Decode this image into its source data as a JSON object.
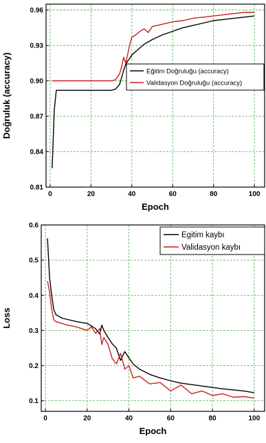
{
  "chart_data": [
    {
      "type": "line",
      "xlabel": "Epoch",
      "ylabel": "Doğruluk (accuracy)",
      "xlim": [
        -2,
        105
      ],
      "ylim": [
        0.81,
        0.965
      ],
      "xticks": [
        "0",
        "20",
        "40",
        "60",
        "80",
        "100"
      ],
      "yticks": [
        "0.81",
        "0.84",
        "0.87",
        "0.90",
        "0.93",
        "0.96"
      ],
      "grid": true,
      "legend_position": "center-right",
      "series": [
        {
          "name": "Eğitim Doğruluğu (accuracy)",
          "color": "#000000",
          "x": [
            1,
            2,
            3,
            5,
            10,
            20,
            30,
            32,
            34,
            35,
            36,
            37,
            38,
            39,
            40,
            42,
            44,
            46,
            48,
            50,
            55,
            60,
            65,
            70,
            75,
            80,
            85,
            90,
            95,
            100
          ],
          "y": [
            0.826,
            0.875,
            0.892,
            0.892,
            0.892,
            0.892,
            0.892,
            0.893,
            0.897,
            0.903,
            0.909,
            0.914,
            0.917,
            0.919,
            0.922,
            0.925,
            0.928,
            0.931,
            0.933,
            0.935,
            0.939,
            0.942,
            0.945,
            0.947,
            0.949,
            0.951,
            0.952,
            0.953,
            0.954,
            0.955
          ]
        },
        {
          "name": "Validasyon Doğruluğu (accuracy)",
          "color": "#cc1f1f",
          "x": [
            1,
            10,
            20,
            30,
            32,
            34,
            35,
            36,
            37,
            38,
            39,
            40,
            42,
            44,
            46,
            48,
            50,
            55,
            60,
            65,
            70,
            75,
            80,
            85,
            90,
            95,
            100
          ],
          "y": [
            0.9,
            0.9,
            0.9,
            0.9,
            0.901,
            0.906,
            0.912,
            0.92,
            0.915,
            0.923,
            0.931,
            0.937,
            0.939,
            0.942,
            0.944,
            0.941,
            0.946,
            0.948,
            0.95,
            0.951,
            0.953,
            0.954,
            0.955,
            0.956,
            0.957,
            0.958,
            0.958
          ]
        }
      ]
    },
    {
      "type": "line",
      "xlabel": "Epoch",
      "ylabel": "Loss",
      "xlim": [
        -2,
        105
      ],
      "ylim": [
        0.07,
        0.6
      ],
      "xticks": [
        "0",
        "20",
        "40",
        "60",
        "80",
        "100"
      ],
      "yticks": [
        "0.1",
        "0.2",
        "0.3",
        "0.4",
        "0.5",
        "0.6"
      ],
      "grid": true,
      "legend_position": "top-right",
      "series": [
        {
          "name": "Egitim kaybı",
          "color": "#000000",
          "x": [
            1,
            2,
            3,
            4,
            5,
            8,
            10,
            15,
            20,
            22,
            24,
            26,
            27,
            28,
            30,
            32,
            34,
            36,
            38,
            40,
            42,
            45,
            50,
            55,
            60,
            65,
            70,
            75,
            80,
            85,
            90,
            95,
            100
          ],
          "y": [
            0.562,
            0.45,
            0.4,
            0.36,
            0.345,
            0.335,
            0.332,
            0.325,
            0.32,
            0.313,
            0.305,
            0.29,
            0.315,
            0.3,
            0.28,
            0.262,
            0.25,
            0.215,
            0.24,
            0.222,
            0.205,
            0.19,
            0.175,
            0.165,
            0.157,
            0.15,
            0.146,
            0.142,
            0.138,
            0.134,
            0.131,
            0.128,
            0.123
          ]
        },
        {
          "name": "Validasyon kaybı",
          "color": "#cc1f1f",
          "x": [
            1,
            2,
            3,
            4,
            5,
            8,
            10,
            15,
            20,
            22,
            24,
            26,
            27,
            28,
            30,
            32,
            34,
            36,
            38,
            40,
            42,
            45,
            50,
            55,
            60,
            65,
            70,
            75,
            80,
            85,
            90,
            95,
            100
          ],
          "y": [
            0.44,
            0.41,
            0.36,
            0.33,
            0.325,
            0.32,
            0.316,
            0.31,
            0.3,
            0.31,
            0.292,
            0.305,
            0.26,
            0.28,
            0.26,
            0.22,
            0.205,
            0.235,
            0.19,
            0.2,
            0.165,
            0.17,
            0.148,
            0.152,
            0.128,
            0.145,
            0.12,
            0.128,
            0.115,
            0.12,
            0.11,
            0.112,
            0.108
          ]
        }
      ]
    }
  ]
}
